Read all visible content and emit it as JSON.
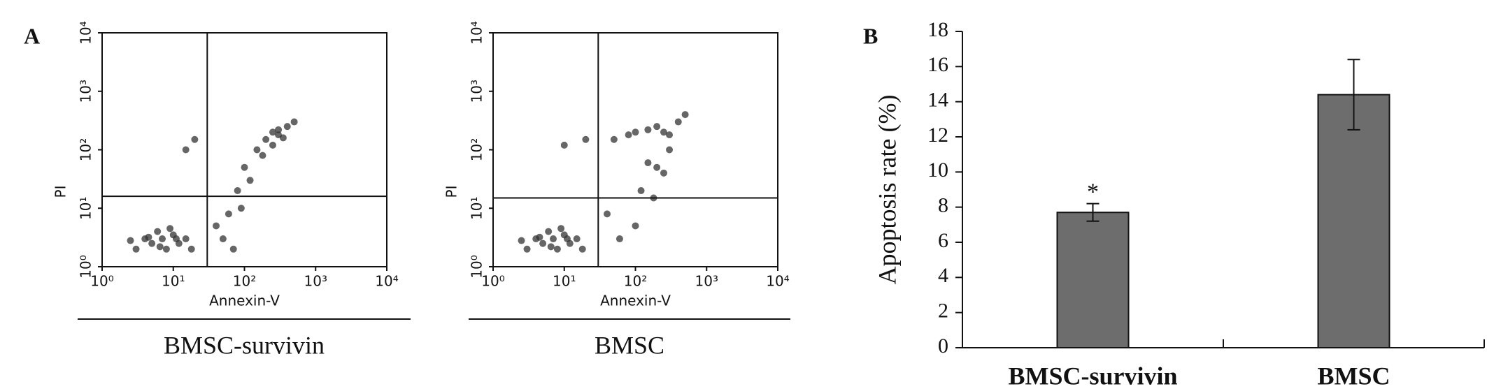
{
  "chart_data": [
    {
      "type": "scatter",
      "panel": "A",
      "title": "BMSC-survivin",
      "xlabel": "Annexin-V",
      "ylabel": "PI",
      "log": true,
      "xlim": [
        1,
        10000
      ],
      "ylim": [
        1,
        10000
      ],
      "xticks": [
        {
          "value": 1,
          "label": "10⁰"
        },
        {
          "value": 10,
          "label": "10¹"
        },
        {
          "value": 100,
          "label": "10²"
        },
        {
          "value": 1000,
          "label": "10³"
        },
        {
          "value": 10000,
          "label": "10⁴"
        }
      ],
      "yticks": [
        {
          "value": 1,
          "label": "10⁰"
        },
        {
          "value": 10,
          "label": "10¹"
        },
        {
          "value": 100,
          "label": "10²"
        },
        {
          "value": 1000,
          "label": "10³"
        },
        {
          "value": 10000,
          "label": "10⁴"
        }
      ],
      "quadrant_x": 30,
      "quadrant_y": 16,
      "color": "#333333",
      "x": [
        3,
        4,
        5,
        6,
        7,
        8,
        10,
        12,
        15,
        18,
        2.5,
        4.5,
        6.5,
        9,
        11,
        40,
        60,
        80,
        100,
        150,
        200,
        250,
        300,
        400,
        500,
        250,
        180,
        120,
        300,
        350,
        50,
        70,
        90,
        20,
        15
      ],
      "y": [
        2,
        3,
        2.5,
        4,
        3,
        2,
        3.5,
        2.5,
        3,
        2,
        2.8,
        3.2,
        2.2,
        4.5,
        3,
        5,
        8,
        20,
        50,
        100,
        150,
        200,
        180,
        250,
        300,
        120,
        80,
        30,
        220,
        160,
        3,
        2,
        10,
        150,
        100
      ]
    },
    {
      "type": "scatter",
      "title": "BMSC",
      "xlabel": "Annexin-V",
      "ylabel": "PI",
      "log": true,
      "xlim": [
        1,
        10000
      ],
      "ylim": [
        1,
        10000
      ],
      "xticks": [
        {
          "value": 1,
          "label": "10⁰"
        },
        {
          "value": 10,
          "label": "10¹"
        },
        {
          "value": 100,
          "label": "10²"
        },
        {
          "value": 1000,
          "label": "10³"
        },
        {
          "value": 10000,
          "label": "10⁴"
        }
      ],
      "yticks": [
        {
          "value": 1,
          "label": "10⁰"
        },
        {
          "value": 10,
          "label": "10¹"
        },
        {
          "value": 100,
          "label": "10²"
        },
        {
          "value": 1000,
          "label": "10³"
        },
        {
          "value": 10000,
          "label": "10⁴"
        }
      ],
      "quadrant_x": 30,
      "quadrant_y": 15,
      "color": "#333333",
      "x": [
        3,
        4,
        5,
        6,
        7,
        8,
        10,
        12,
        15,
        18,
        2.5,
        4.5,
        6.5,
        9,
        11,
        50,
        80,
        100,
        150,
        200,
        250,
        300,
        400,
        500,
        150,
        200,
        250,
        300,
        120,
        180,
        60,
        100,
        40,
        20,
        10
      ],
      "y": [
        2,
        3,
        2.5,
        4,
        3,
        2,
        3.5,
        2.5,
        3,
        2,
        2.8,
        3.2,
        2.2,
        4.5,
        3,
        150,
        180,
        200,
        220,
        250,
        200,
        180,
        300,
        400,
        60,
        50,
        40,
        100,
        20,
        15,
        3,
        5,
        8,
        150,
        120
      ]
    },
    {
      "type": "bar",
      "panel": "B",
      "ylabel": "Apoptosis rate (%)",
      "categories": [
        "BMSC-survivin",
        "BMSC"
      ],
      "values": [
        7.7,
        14.4
      ],
      "errors": [
        0.5,
        2.0
      ],
      "annotations": [
        "*",
        null
      ],
      "color": "#6d6d6d",
      "ylim": [
        0,
        18
      ],
      "yticks": [
        0,
        2,
        4,
        6,
        8,
        10,
        12,
        14,
        16,
        18
      ]
    }
  ]
}
